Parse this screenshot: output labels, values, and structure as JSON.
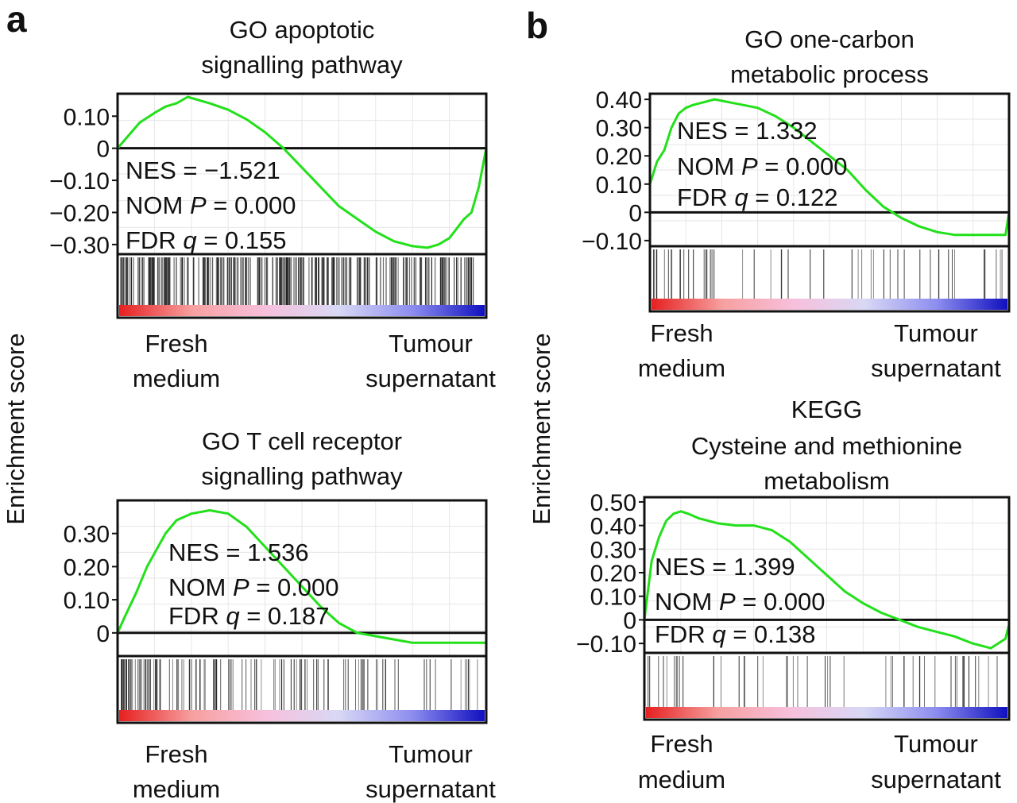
{
  "panels": [
    {
      "label": "a"
    },
    {
      "label": "b"
    }
  ],
  "ylabel": "Enrichment score",
  "chart_data": [
    {
      "type": "line",
      "panel": "a",
      "title": [
        "GO apoptotic",
        "signalling pathway"
      ],
      "ylim": [
        -0.33,
        0.17
      ],
      "yticks": [
        0.1,
        0,
        -0.1,
        -0.2,
        -0.3
      ],
      "ytick_labels": [
        "0.10",
        "0",
        "−0.10",
        "−0.20",
        "−0.30"
      ],
      "stats": [
        {
          "prefix": "NES = ",
          "italic": "",
          "value": "−1.521"
        },
        {
          "prefix": "NOM ",
          "italic": "P",
          "value": " = 0.000"
        },
        {
          "prefix": "FDR ",
          "italic": "q",
          "value": " = 0.155"
        }
      ],
      "x": [
        0,
        0.03,
        0.06,
        0.1,
        0.13,
        0.16,
        0.19,
        0.22,
        0.25,
        0.3,
        0.35,
        0.4,
        0.45,
        0.5,
        0.55,
        0.6,
        0.65,
        0.7,
        0.75,
        0.8,
        0.84,
        0.87,
        0.9,
        0.92,
        0.94,
        0.96,
        0.98,
        1.0
      ],
      "y": [
        0.0,
        0.04,
        0.08,
        0.11,
        0.13,
        0.14,
        0.16,
        0.15,
        0.14,
        0.12,
        0.09,
        0.05,
        0.0,
        -0.06,
        -0.12,
        -0.18,
        -0.22,
        -0.26,
        -0.29,
        -0.305,
        -0.31,
        -0.3,
        -0.28,
        -0.25,
        -0.22,
        -0.2,
        -0.12,
        0.0
      ],
      "xlabel_left": [
        "Fresh",
        "medium"
      ],
      "xlabel_right": [
        "Tumour",
        "supernatant"
      ],
      "hits_density": "dense"
    },
    {
      "type": "line",
      "panel": "a",
      "title": [
        "GO T cell receptor",
        "signalling pathway"
      ],
      "ylim": [
        -0.07,
        0.4
      ],
      "yticks": [
        0.3,
        0.2,
        0.1,
        0
      ],
      "ytick_labels": [
        "0.30",
        "0.20",
        "0.10",
        "0"
      ],
      "stats": [
        {
          "prefix": "NES = ",
          "italic": "",
          "value": "1.536"
        },
        {
          "prefix": "NOM ",
          "italic": "P",
          "value": " = 0.000"
        },
        {
          "prefix": "FDR ",
          "italic": "q",
          "value": " = 0.187"
        }
      ],
      "x": [
        0,
        0.02,
        0.05,
        0.08,
        0.1,
        0.13,
        0.16,
        0.2,
        0.25,
        0.3,
        0.35,
        0.4,
        0.45,
        0.5,
        0.55,
        0.6,
        0.65,
        0.7,
        0.75,
        0.8,
        0.85,
        0.9,
        0.95,
        1.0
      ],
      "y": [
        0.0,
        0.05,
        0.12,
        0.2,
        0.24,
        0.3,
        0.34,
        0.36,
        0.37,
        0.36,
        0.32,
        0.26,
        0.2,
        0.14,
        0.08,
        0.03,
        0.0,
        -0.01,
        -0.02,
        -0.03,
        -0.03,
        -0.03,
        -0.03,
        -0.03
      ],
      "xlabel_left": [
        "Fresh",
        "medium"
      ],
      "xlabel_right": [
        "Tumour",
        "supernatant"
      ],
      "hits_density": "front"
    },
    {
      "type": "line",
      "panel": "b",
      "title": [
        "GO one-carbon",
        "metabolic process"
      ],
      "ylim": [
        -0.12,
        0.42
      ],
      "yticks": [
        0.4,
        0.3,
        0.2,
        0.1,
        0,
        -0.1
      ],
      "ytick_labels": [
        "0.40",
        "0.30",
        "0.20",
        "0.10",
        "0",
        "−0.10"
      ],
      "stats": [
        {
          "prefix": "NES = ",
          "italic": "",
          "value": "1.332"
        },
        {
          "prefix": "NOM ",
          "italic": "P",
          "value": " = 0.000"
        },
        {
          "prefix": "FDR ",
          "italic": "q",
          "value": " = 0.122"
        }
      ],
      "x": [
        0,
        0.02,
        0.04,
        0.06,
        0.08,
        0.1,
        0.12,
        0.15,
        0.18,
        0.22,
        0.26,
        0.3,
        0.35,
        0.4,
        0.45,
        0.5,
        0.55,
        0.6,
        0.65,
        0.7,
        0.75,
        0.8,
        0.85,
        0.9,
        0.95,
        0.99,
        1.0
      ],
      "y": [
        0.1,
        0.18,
        0.22,
        0.3,
        0.35,
        0.37,
        0.38,
        0.39,
        0.4,
        0.39,
        0.38,
        0.37,
        0.34,
        0.3,
        0.25,
        0.2,
        0.15,
        0.08,
        0.02,
        -0.02,
        -0.05,
        -0.07,
        -0.08,
        -0.08,
        -0.08,
        -0.08,
        0.0
      ],
      "xlabel_left": [
        "Fresh",
        "medium"
      ],
      "xlabel_right": [
        "Tumour",
        "supernatant"
      ],
      "hits_density": "sparse"
    },
    {
      "type": "line",
      "panel": "b",
      "title": [
        "KEGG",
        "Cysteine and methionine",
        "metabolism"
      ],
      "ylim": [
        -0.14,
        0.52
      ],
      "yticks": [
        0.5,
        0.4,
        0.3,
        0.2,
        0.1,
        0,
        -0.1
      ],
      "ytick_labels": [
        "0.50",
        "0.40",
        "0.30",
        "0.20",
        "0.10",
        "0",
        "−0.10"
      ],
      "stats": [
        {
          "prefix": "NES = ",
          "italic": "",
          "value": "1.399"
        },
        {
          "prefix": "NOM ",
          "italic": "P",
          "value": " = 0.000"
        },
        {
          "prefix": "FDR ",
          "italic": "q",
          "value": " = 0.138"
        }
      ],
      "x": [
        0,
        0.02,
        0.04,
        0.06,
        0.08,
        0.1,
        0.12,
        0.15,
        0.2,
        0.25,
        0.3,
        0.35,
        0.4,
        0.45,
        0.5,
        0.55,
        0.6,
        0.65,
        0.7,
        0.75,
        0.8,
        0.85,
        0.9,
        0.95,
        0.99,
        1.0
      ],
      "y": [
        0.0,
        0.25,
        0.35,
        0.42,
        0.45,
        0.46,
        0.45,
        0.43,
        0.41,
        0.4,
        0.4,
        0.38,
        0.33,
        0.26,
        0.19,
        0.12,
        0.07,
        0.03,
        0.0,
        -0.03,
        -0.05,
        -0.07,
        -0.1,
        -0.12,
        -0.08,
        -0.02
      ],
      "xlabel_left": [
        "Fresh",
        "medium"
      ],
      "xlabel_right": [
        "Tumour",
        "supernatant"
      ],
      "hits_density": "sparse"
    }
  ],
  "colors": {
    "curve": "#22e01a",
    "axis": "#111111",
    "grid": "#e6e6e6",
    "hit": "#222222",
    "gradient": [
      "#e62020",
      "#f7a0a0",
      "#f7c0dc",
      "#d8d8f5",
      "#8e8ef0",
      "#1010c0"
    ]
  }
}
